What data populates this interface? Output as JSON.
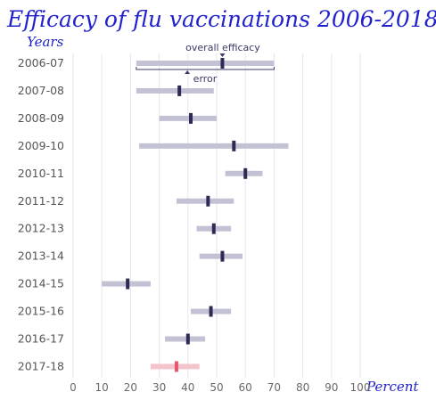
{
  "chart_data": {
    "type": "range-dot",
    "title": "Efficacy of flu vaccinations 2006-2018",
    "ylabel": "Years",
    "xlabel": "Percent",
    "xlim": [
      0,
      100
    ],
    "xticks": [
      "0",
      "10",
      "20",
      "30",
      "40",
      "50",
      "60",
      "70",
      "80",
      "90",
      "100"
    ],
    "grid": true,
    "annotations": {
      "estimate": "overall efficacy",
      "range": "error"
    },
    "rows": [
      {
        "season": "2006-07",
        "low": 22,
        "high": 70,
        "value": 52,
        "highlight": false
      },
      {
        "season": "2007-08",
        "low": 22,
        "high": 49,
        "value": 37,
        "highlight": false
      },
      {
        "season": "2008-09",
        "low": 30,
        "high": 50,
        "value": 41,
        "highlight": false
      },
      {
        "season": "2009-10",
        "low": 23,
        "high": 75,
        "value": 56,
        "highlight": false
      },
      {
        "season": "2010-11",
        "low": 53,
        "high": 66,
        "value": 60,
        "highlight": false
      },
      {
        "season": "2011-12",
        "low": 36,
        "high": 56,
        "value": 47,
        "highlight": false
      },
      {
        "season": "2012-13",
        "low": 43,
        "high": 55,
        "value": 49,
        "highlight": false
      },
      {
        "season": "2013-14",
        "low": 44,
        "high": 59,
        "value": 52,
        "highlight": false
      },
      {
        "season": "2014-15",
        "low": 10,
        "high": 27,
        "value": 19,
        "highlight": false
      },
      {
        "season": "2015-16",
        "low": 41,
        "high": 55,
        "value": 48,
        "highlight": false
      },
      {
        "season": "2016-17",
        "low": 32,
        "high": 46,
        "value": 40,
        "highlight": false
      },
      {
        "season": "2017-18",
        "low": 27,
        "high": 44,
        "value": 36,
        "highlight": true
      }
    ],
    "colors": {
      "range": "#c3c2d5",
      "estimate": "#2d2b55",
      "range_highlight": "#f3c4cc",
      "estimate_highlight": "#e05a6c",
      "grid": "#e6e6ee",
      "annotation": "#3a3a6a",
      "title": "#2222cc"
    }
  }
}
